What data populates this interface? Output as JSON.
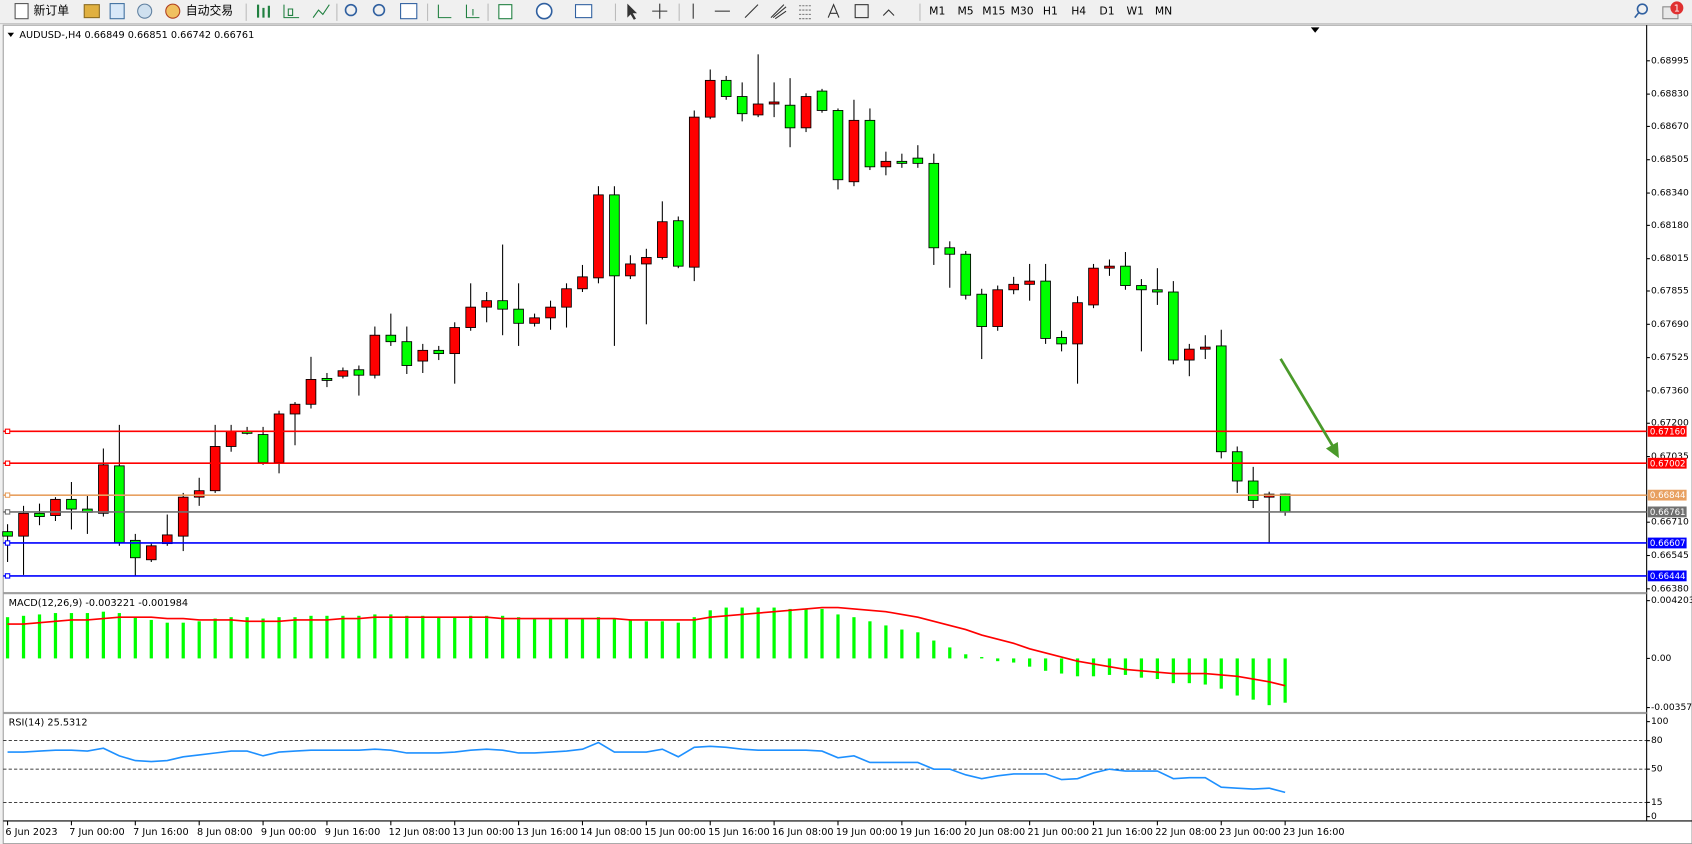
{
  "toolbar": {
    "new_order": "新订单",
    "auto_trading": "自动交易",
    "timeframes": [
      "M1",
      "M5",
      "M15",
      "M30",
      "H1",
      "H4",
      "D1",
      "W1",
      "MN"
    ],
    "notifications": "1"
  },
  "chart_data": [
    {
      "type": "candlestick",
      "title": "AUDUSD-,H4 0.66849 0.66851 0.66742 0.66761",
      "categories": [
        "6 Jun 2023",
        null,
        null,
        null,
        "7 Jun 00:00",
        null,
        null,
        null,
        "7 Jun 16:00",
        null,
        null,
        null,
        "8 Jun 08:00",
        null,
        null,
        null,
        "9 Jun 00:00",
        null,
        null,
        null,
        "9 Jun 16:00",
        null,
        null,
        null,
        "12 Jun 08:00",
        null,
        null,
        null,
        "13 Jun 00:00",
        null,
        null,
        null,
        "13 Jun 16:00",
        null,
        null,
        null,
        "14 Jun 08:00",
        null,
        null,
        null,
        "15 Jun 00:00",
        null,
        null,
        null,
        "15 Jun 16:00",
        null,
        null,
        null,
        "16 Jun 08:00",
        null,
        null,
        null,
        "19 Jun 00:00",
        null,
        null,
        null,
        "19 Jun 16:00",
        null,
        null,
        null,
        "20 Jun 08:00",
        null,
        null,
        null,
        "21 Jun 00:00",
        null,
        null,
        null,
        "21 Jun 16:00",
        null,
        null,
        null,
        "22 Jun 08:00",
        null,
        null,
        null,
        "23 Jun 00:00",
        null,
        null,
        null,
        "23 Jun 16:00"
      ],
      "open": [
        0.66663,
        0.66641,
        0.66754,
        0.66743,
        0.66823,
        0.66775,
        0.66754,
        0.66989,
        0.6662,
        0.66524,
        0.66604,
        0.66641,
        0.66834,
        0.66866,
        0.67085,
        0.6716,
        0.67144,
        0.67005,
        0.67246,
        0.67294,
        0.67422,
        0.67433,
        0.67465,
        0.67438,
        0.67636,
        0.67604,
        0.67508,
        0.67561,
        0.67545,
        0.67674,
        0.67775,
        0.67807,
        0.67765,
        0.67695,
        0.67722,
        0.67775,
        0.67866,
        0.6792,
        0.68331,
        0.6793,
        0.67989,
        0.68021,
        0.68203,
        0.67973,
        0.68716,
        0.68898,
        0.68818,
        0.68727,
        0.68781,
        0.68775,
        0.68663,
        0.68845,
        0.68749,
        0.68396,
        0.687,
        0.6847,
        0.68497,
        0.68513,
        0.68487,
        0.68069,
        0.68037,
        0.67839,
        0.67679,
        0.67861,
        0.67888,
        0.67904,
        0.67625,
        0.67593,
        0.67786,
        0.67968,
        0.67978,
        0.67882,
        0.67861,
        0.6785,
        0.67513,
        0.67567,
        0.67583,
        0.67059,
        0.66914,
        0.66834,
        0.66849
      ],
      "high": [
        0.667,
        0.66791,
        0.66802,
        0.66834,
        0.66909,
        0.66845,
        0.67075,
        0.67192,
        0.66652,
        0.66604,
        0.66748,
        0.66855,
        0.6693,
        0.67192,
        0.67192,
        0.67182,
        0.67182,
        0.67262,
        0.67305,
        0.67529,
        0.67449,
        0.67476,
        0.67486,
        0.67679,
        0.67743,
        0.67679,
        0.67593,
        0.67583,
        0.677,
        0.67893,
        0.6785,
        0.68085,
        0.67893,
        0.67743,
        0.67807,
        0.67893,
        0.67984,
        0.68374,
        0.68374,
        0.68032,
        0.68064,
        0.68299,
        0.68224,
        0.68749,
        0.68952,
        0.6892,
        0.68888,
        0.69027,
        0.68888,
        0.68909,
        0.68834,
        0.68856,
        0.68759,
        0.68802,
        0.68759,
        0.68545,
        0.68535,
        0.68577,
        0.68535,
        0.68101,
        0.68053,
        0.67866,
        0.67882,
        0.67925,
        0.67989,
        0.67989,
        0.67658,
        0.67829,
        0.67989,
        0.68011,
        0.68048,
        0.67914,
        0.67968,
        0.67904,
        0.67593,
        0.67636,
        0.67663,
        0.67085,
        0.66984,
        0.66861,
        0.66851
      ],
      "low": [
        0.66513,
        0.66449,
        0.66695,
        0.66716,
        0.66674,
        0.66652,
        0.66738,
        0.66593,
        0.66444,
        0.66513,
        0.66593,
        0.66567,
        0.66791,
        0.66855,
        0.67059,
        0.67144,
        0.66994,
        0.66952,
        0.67091,
        0.67273,
        0.67379,
        0.67422,
        0.67337,
        0.67422,
        0.67583,
        0.67444,
        0.67449,
        0.67513,
        0.67396,
        0.67658,
        0.677,
        0.67636,
        0.67583,
        0.67679,
        0.67663,
        0.67674,
        0.6785,
        0.67893,
        0.67583,
        0.67914,
        0.6769,
        0.68011,
        0.67968,
        0.67904,
        0.68706,
        0.68802,
        0.68695,
        0.68716,
        0.68716,
        0.68567,
        0.68642,
        0.68738,
        0.68358,
        0.68374,
        0.68454,
        0.68428,
        0.68465,
        0.68465,
        0.67984,
        0.67871,
        0.67813,
        0.67518,
        0.67658,
        0.67839,
        0.67807,
        0.67593,
        0.67556,
        0.67396,
        0.6777,
        0.6793,
        0.67861,
        0.67556,
        0.67786,
        0.67492,
        0.67433,
        0.67518,
        0.67026,
        0.66855,
        0.6678,
        0.66604,
        0.66742
      ],
      "close": [
        0.66641,
        0.66754,
        0.66738,
        0.66823,
        0.66775,
        0.66759,
        0.66994,
        0.66609,
        0.66534,
        0.66593,
        0.66647,
        0.66834,
        0.66866,
        0.67085,
        0.6716,
        0.6715,
        0.67005,
        0.67246,
        0.67294,
        0.67417,
        0.67412,
        0.6746,
        0.67438,
        0.67636,
        0.67604,
        0.67486,
        0.67561,
        0.67545,
        0.67674,
        0.67775,
        0.67807,
        0.67765,
        0.67695,
        0.67722,
        0.67775,
        0.67866,
        0.67925,
        0.68331,
        0.6793,
        0.67989,
        0.68021,
        0.68198,
        0.67978,
        0.68716,
        0.68898,
        0.68818,
        0.68733,
        0.68781,
        0.68791,
        0.68663,
        0.68818,
        0.68749,
        0.68406,
        0.687,
        0.6847,
        0.68497,
        0.68487,
        0.68487,
        0.68069,
        0.68037,
        0.67834,
        0.67679,
        0.67861,
        0.67888,
        0.67904,
        0.6762,
        0.67593,
        0.67797,
        0.67968,
        0.67978,
        0.67882,
        0.67861,
        0.6785,
        0.67513,
        0.67567,
        0.67577,
        0.67059,
        0.66914,
        0.66818,
        0.66849,
        0.66761
      ],
      "up_color": "#ff0000",
      "down_color": "#00ff00",
      "ylim": [
        0.66364,
        0.69166
      ],
      "yticks": [
        0.68995,
        {
          "value": 0.6883,
          "label": "0.68830"
        },
        {
          "value": 0.6867,
          "label": "0.68670"
        },
        0.68505,
        {
          "value": 0.6834,
          "label": "0.68340"
        },
        {
          "value": 0.6818,
          "label": "0.68180"
        },
        0.68015,
        0.67855,
        {
          "value": 0.6769,
          "label": "0.67690"
        },
        0.67525,
        {
          "value": 0.6736,
          "label": "0.67360"
        },
        {
          "value": 0.672,
          "label": "0.67200"
        },
        0.67035,
        {
          "value": 0.6671,
          "label": "0.66710"
        },
        0.66545,
        {
          "value": 0.6638,
          "label": "0.66380"
        }
      ],
      "lines": [
        {
          "value": 0.6716,
          "label": "0.67160",
          "color": "#ff0000"
        },
        {
          "value": 0.67002,
          "color": "#ff0000"
        },
        {
          "value": 0.66844,
          "color": "#e8a060"
        },
        {
          "value": 0.66761,
          "color": "#707070"
        },
        {
          "value": 0.66607,
          "color": "#0000ff"
        },
        {
          "value": 0.66444,
          "color": "#0000ff"
        }
      ]
    },
    {
      "type": "macd",
      "title": "MACD(12,26,9) -0.003221 -0.001984",
      "histogram": {
        "color": "#00ff00",
        "values": [
          0.003,
          0.0031,
          0.0032,
          0.0033,
          0.0033,
          0.0033,
          0.0034,
          0.0033,
          0.003,
          0.0028,
          0.0026,
          0.0026,
          0.0027,
          0.0029,
          0.003,
          0.003,
          0.0029,
          0.003,
          0.003,
          0.0031,
          0.0031,
          0.0031,
          0.0031,
          0.0032,
          0.0032,
          0.0031,
          0.0031,
          0.003,
          0.003,
          0.0031,
          0.0031,
          0.0031,
          0.003,
          0.0029,
          0.0029,
          0.0029,
          0.0029,
          0.003,
          0.0029,
          0.0028,
          0.0027,
          0.0027,
          0.0026,
          0.003,
          0.0035,
          0.0037,
          0.0037,
          0.0037,
          0.0037,
          0.0036,
          0.0036,
          0.0036,
          0.0032,
          0.003,
          0.0027,
          0.0024,
          0.0021,
          0.0019,
          0.0013,
          0.0008,
          0.0003,
          0.0001,
          -0.0002,
          -0.0003,
          -0.0006,
          -0.0009,
          -0.0011,
          -0.0013,
          -0.0013,
          -0.0012,
          -0.0012,
          -0.0014,
          -0.0015,
          -0.0018,
          -0.0018,
          -0.0019,
          -0.0022,
          -0.0027,
          -0.003,
          -0.0034,
          -0.003221
        ]
      },
      "signal": {
        "color": "#ff0000",
        "values": [
          0.0025,
          0.0025,
          0.0026,
          0.0027,
          0.0028,
          0.0028,
          0.0029,
          0.003,
          0.003,
          0.003,
          0.0029,
          0.0029,
          0.0028,
          0.0028,
          0.0028,
          0.0027,
          0.0027,
          0.0027,
          0.0028,
          0.0028,
          0.0028,
          0.0029,
          0.0029,
          0.003,
          0.003,
          0.003,
          0.003,
          0.003,
          0.003,
          0.003,
          0.003,
          0.0029,
          0.0029,
          0.0029,
          0.0029,
          0.0029,
          0.0029,
          0.0029,
          0.0029,
          0.0028,
          0.0028,
          0.0028,
          0.0028,
          0.0028,
          0.003,
          0.0031,
          0.0032,
          0.0033,
          0.0034,
          0.0035,
          0.0036,
          0.0037,
          0.0037,
          0.0036,
          0.0035,
          0.0034,
          0.0032,
          0.003,
          0.0027,
          0.0024,
          0.0021,
          0.0017,
          0.0014,
          0.0011,
          0.0007,
          0.0004,
          0.0001,
          -0.0002,
          -0.0004,
          -0.0006,
          -0.0008,
          -0.0009,
          -0.001,
          -0.0011,
          -0.0011,
          -0.0011,
          -0.0012,
          -0.0013,
          -0.0015,
          -0.0017,
          -0.001984
        ]
      },
      "ylim": [
        -0.00397,
        0.00467
      ],
      "yticks": [
        0.004203,
        {
          "value": 0,
          "label": "0.00"
        },
        -0.003575
      ]
    },
    {
      "type": "line",
      "title": "RSI(14) 25.5312",
      "series": [
        {
          "color": "#1e90ff",
          "values": [
            68,
            68,
            69,
            70,
            70,
            69,
            72,
            64,
            59,
            58,
            59,
            63,
            65,
            67,
            69,
            69,
            64,
            68,
            69,
            70,
            70,
            70,
            70,
            71,
            70,
            67,
            67,
            67,
            68,
            70,
            71,
            70,
            67,
            67,
            68,
            69,
            71,
            78,
            68,
            68,
            68,
            71,
            63,
            73,
            74,
            73,
            71,
            70,
            70,
            70,
            70,
            69,
            62,
            64,
            57,
            57,
            57,
            57,
            50,
            50,
            44,
            40,
            43,
            45,
            45,
            45,
            39,
            40,
            46,
            50,
            48,
            48,
            48,
            40,
            41,
            41,
            31,
            30,
            29,
            30,
            25.5312
          ]
        }
      ],
      "levels": [
        80,
        50,
        15
      ],
      "ylim": [
        0,
        100
      ],
      "yticks": [
        100,
        80,
        50,
        15,
        0
      ]
    }
  ]
}
